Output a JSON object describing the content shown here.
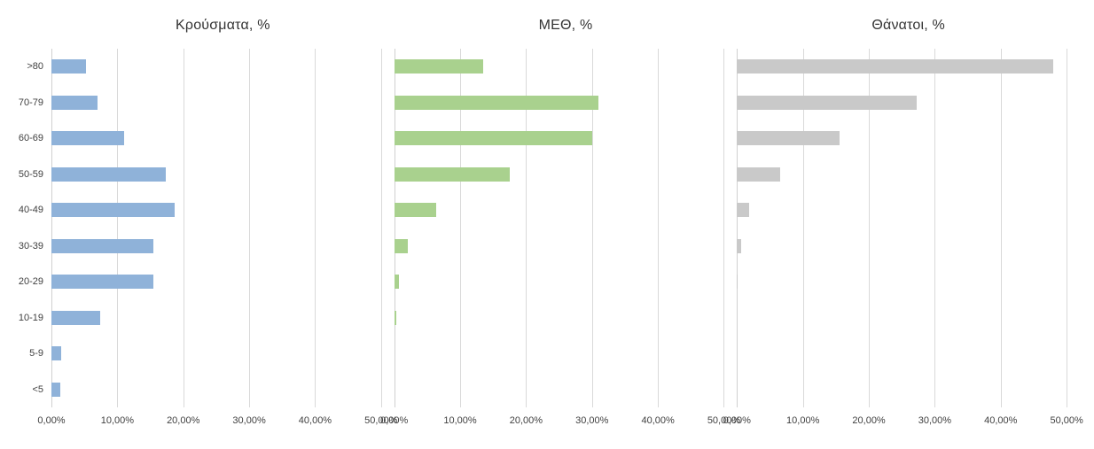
{
  "figure": {
    "background": "#FFFFFF",
    "gridline_color": "#D9D9D9",
    "axis_text_color": "#404040",
    "title_text_color": "#333333"
  },
  "chart_data": [
    {
      "type": "bar",
      "orientation": "horizontal",
      "title": "Κρούσματα, %",
      "categories": [
        ">80",
        "70-79",
        "60-69",
        "50-59",
        "40-49",
        "30-39",
        "20-29",
        "10-19",
        "5-9",
        "<5"
      ],
      "values": [
        5.3,
        7.0,
        11.0,
        17.4,
        18.7,
        15.5,
        15.4,
        7.4,
        1.5,
        1.4
      ],
      "bar_color": "#8FB2D9",
      "xlim": [
        0,
        52
      ],
      "ticks": [
        0,
        10,
        20,
        30,
        40,
        50
      ],
      "tick_labels": [
        "0,00%",
        "10,00%",
        "20,00%",
        "30,00%",
        "40,00%",
        "50,00%"
      ],
      "gridlines": true,
      "legend": "none"
    },
    {
      "type": "bar",
      "orientation": "horizontal",
      "title": "ΜΕΘ, %",
      "categories": [
        ">80",
        "70-79",
        "60-69",
        "50-59",
        "40-49",
        "30-39",
        "20-29",
        "10-19",
        "5-9",
        "<5"
      ],
      "values": [
        13.5,
        31.0,
        30.0,
        17.5,
        6.4,
        2.0,
        0.7,
        0.3,
        0.0,
        0.0
      ],
      "bar_color": "#A9D18E",
      "xlim": [
        0,
        52
      ],
      "ticks": [
        0,
        10,
        20,
        30,
        40,
        50
      ],
      "tick_labels": [
        "0,00%",
        "10,00%",
        "20,00%",
        "30,00%",
        "40,00%",
        "50,00%"
      ],
      "gridlines": true,
      "legend": "none"
    },
    {
      "type": "bar",
      "orientation": "horizontal",
      "title": "Θάνατοι, %",
      "categories": [
        ">80",
        "70-79",
        "60-69",
        "50-59",
        "40-49",
        "30-39",
        "20-29",
        "10-19",
        "5-9",
        "<5"
      ],
      "values": [
        48.0,
        27.3,
        15.6,
        6.5,
        1.9,
        0.6,
        0.1,
        0.0,
        0.0,
        0.0
      ],
      "bar_color": "#C9C9C9",
      "xlim": [
        0,
        52
      ],
      "ticks": [
        0,
        10,
        20,
        30,
        40,
        50
      ],
      "tick_labels": [
        "0,00%",
        "10,00%",
        "20,00%",
        "30,00%",
        "40,00%",
        "50,00%"
      ],
      "gridlines": true,
      "legend": "none"
    }
  ]
}
